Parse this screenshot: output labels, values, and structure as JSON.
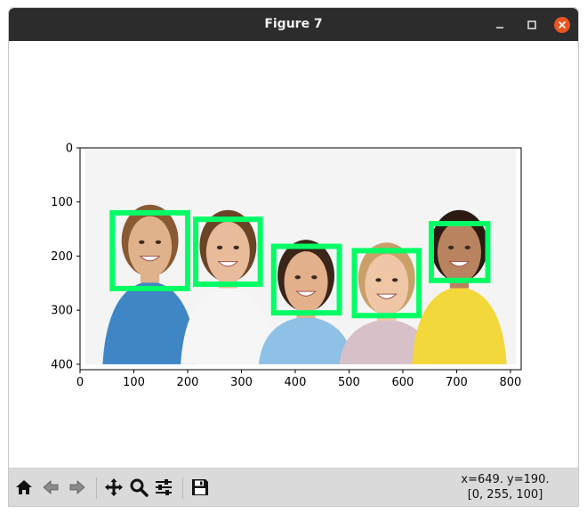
{
  "window": {
    "title": "Figure 7"
  },
  "toolbar": {
    "buttons": [
      {
        "name": "home-icon",
        "label": "Home"
      },
      {
        "name": "back-icon",
        "label": "Back"
      },
      {
        "name": "forward-icon",
        "label": "Forward"
      },
      {
        "name": "pan-icon",
        "label": "Pan"
      },
      {
        "name": "zoom-icon",
        "label": "Zoom"
      },
      {
        "name": "configure-subplots-icon",
        "label": "Configure subplots"
      },
      {
        "name": "save-icon",
        "label": "Save"
      }
    ],
    "coords_line1": "x=649. y=190.",
    "coords_line2": "[0, 255, 100]"
  },
  "colors": {
    "titlebar": "#2c2c2c",
    "close_button": "#e95420",
    "toolbar": "#dadada",
    "box": "#00ff64"
  },
  "chart_data": {
    "type": "image",
    "xlim": [
      0,
      820
    ],
    "ylim": [
      410,
      0
    ],
    "image_extent": [
      10,
      810,
      0,
      400
    ],
    "x_ticks": [
      0,
      100,
      200,
      300,
      400,
      500,
      600,
      700,
      800
    ],
    "y_ticks": [
      0,
      100,
      200,
      300,
      400
    ],
    "x_tick_labels": [
      "0",
      "100",
      "200",
      "300",
      "400",
      "500",
      "600",
      "700",
      "800"
    ],
    "y_tick_labels": [
      "0",
      "100",
      "200",
      "300",
      "400"
    ],
    "rectangles": [
      {
        "x0": 60,
        "y0": 120,
        "x1": 200,
        "y1": 260
      },
      {
        "x0": 215,
        "y0": 132,
        "x1": 335,
        "y1": 252
      },
      {
        "x0": 360,
        "y0": 182,
        "x1": 482,
        "y1": 305
      },
      {
        "x0": 510,
        "y0": 190,
        "x1": 630,
        "y1": 310
      },
      {
        "x0": 653,
        "y0": 140,
        "x1": 758,
        "y1": 245
      }
    ],
    "faces": [
      {
        "cx": 130,
        "cy": 180,
        "skin": "#e0b28c",
        "hair": "#8a5a32",
        "shirt": "#3f86c5"
      },
      {
        "cx": 275,
        "cy": 190,
        "skin": "#e8bc9a",
        "hair": "#6b4326",
        "shirt": "#f6f6f6"
      },
      {
        "cx": 420,
        "cy": 245,
        "skin": "#e2b08a",
        "hair": "#3a2518",
        "shirt": "#8fc0e6"
      },
      {
        "cx": 570,
        "cy": 250,
        "skin": "#efc6a6",
        "hair": "#c8a068",
        "shirt": "#d8c0c8"
      },
      {
        "cx": 705,
        "cy": 190,
        "skin": "#b98360",
        "hair": "#2b1a12",
        "shirt": "#f2d83a"
      }
    ]
  }
}
